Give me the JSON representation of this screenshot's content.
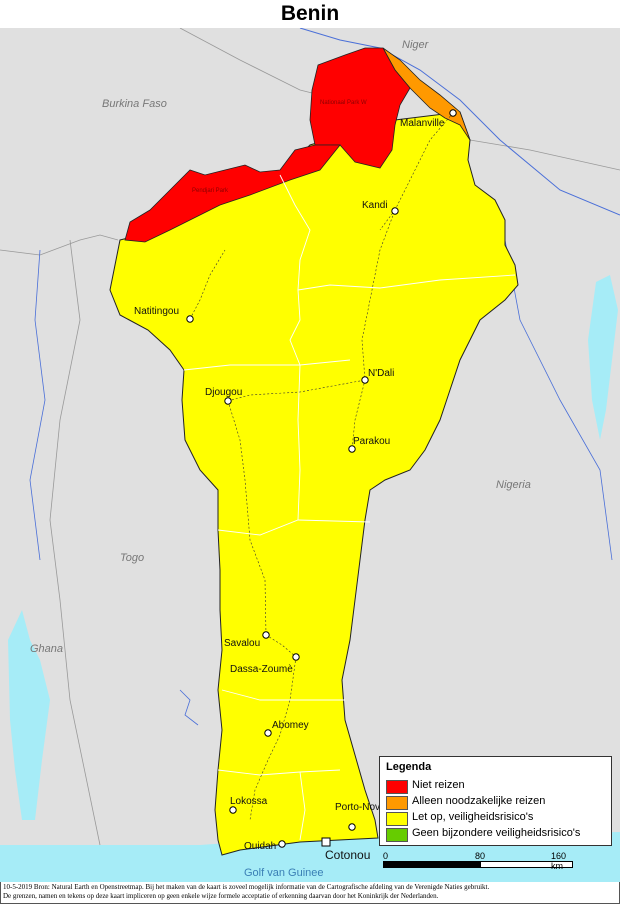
{
  "title": "Benin",
  "countries": {
    "niger": "Niger",
    "burkina": "Burkina Faso",
    "nigeria": "Nigeria",
    "togo": "Togo",
    "ghana": "Ghana"
  },
  "sea": "Golf van Guinee",
  "parks": {
    "pendjari": "Pendjari Park",
    "w_park": "Nationaal Park W"
  },
  "cities": [
    {
      "name": "Malanville"
    },
    {
      "name": "Kandi"
    },
    {
      "name": "Natitingou"
    },
    {
      "name": "N'Dali"
    },
    {
      "name": "Djougou"
    },
    {
      "name": "Parakou"
    },
    {
      "name": "Savalou"
    },
    {
      "name": "Dassa-Zoumè"
    },
    {
      "name": "Abomey"
    },
    {
      "name": "Lokossa"
    },
    {
      "name": "Porto-Novo"
    },
    {
      "name": "Ouidah"
    },
    {
      "name": "Cotonou"
    }
  ],
  "legend": {
    "title": "Legenda",
    "items": [
      {
        "label": "Niet reizen",
        "color": "#ff0000"
      },
      {
        "label": "Alleen noodzakelijke reizen",
        "color": "#ff9900"
      },
      {
        "label": "Let op, veiligheidsrisico's",
        "color": "#ffff00"
      },
      {
        "label": "Geen bijzondere veiligheidsrisico's",
        "color": "#66cc00"
      }
    ]
  },
  "scale": {
    "t0": "0",
    "t1": "80",
    "t2": "160 km"
  },
  "credits": {
    "line1": "10-5-2019 Bron: Natural Earth en Openstreetmap. Bij het maken van de kaart is zoveel mogelijk informatie van de Cartografische afdeling van de Verenigde Naties gebruikt.",
    "line2": "De grenzen, namen en tekens op deze kaart impliceren op geen enkele wijze formele acceptatie of erkenning daarvan door het Koninkrijk der Nederlanden."
  },
  "colors": {
    "neighbor": "#e0e0e0",
    "water": "#a6ecf7",
    "river": "#4a6fd8"
  }
}
